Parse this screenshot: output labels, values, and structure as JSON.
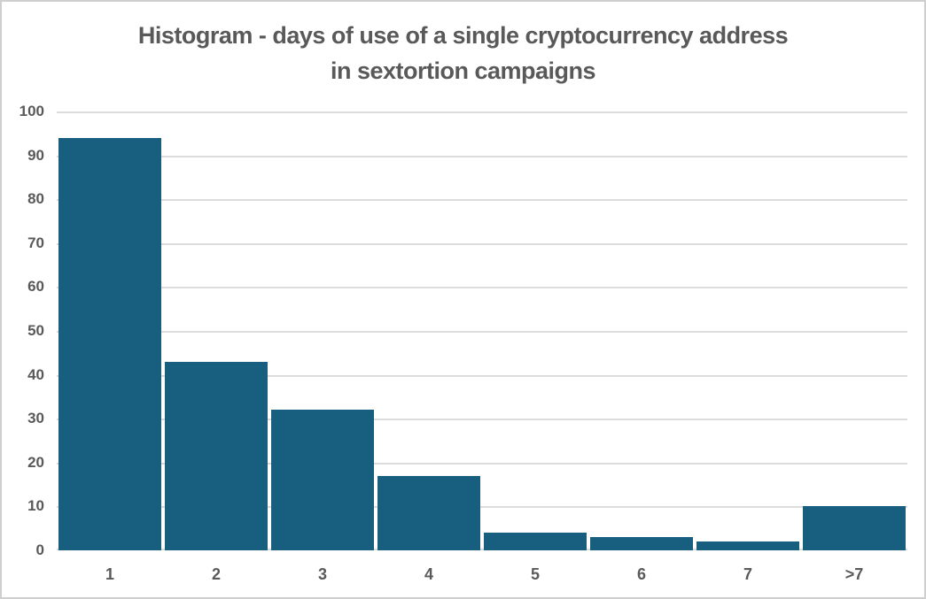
{
  "chart_data": {
    "type": "bar",
    "title": "Histogram - days of use of a single cryptocurrency address in sextortion campaigns",
    "title_lines": [
      "Histogram - days of use of a single cryptocurrency address",
      "in sextortion campaigns"
    ],
    "categories": [
      "1",
      "2",
      "3",
      "4",
      "5",
      "6",
      "7",
      ">7"
    ],
    "values": [
      94,
      43,
      32,
      17,
      4,
      3,
      2,
      10
    ],
    "xlabel": "",
    "ylabel": "",
    "ylim": [
      0,
      100
    ],
    "ytick_step": 10,
    "grid": true,
    "legend_position": "none",
    "colors": {
      "bar": "#175E7F",
      "labels": "#595959",
      "gridline": "#DCDCDC",
      "border": "#CFCFCF",
      "background": "#FFFFFF"
    }
  }
}
